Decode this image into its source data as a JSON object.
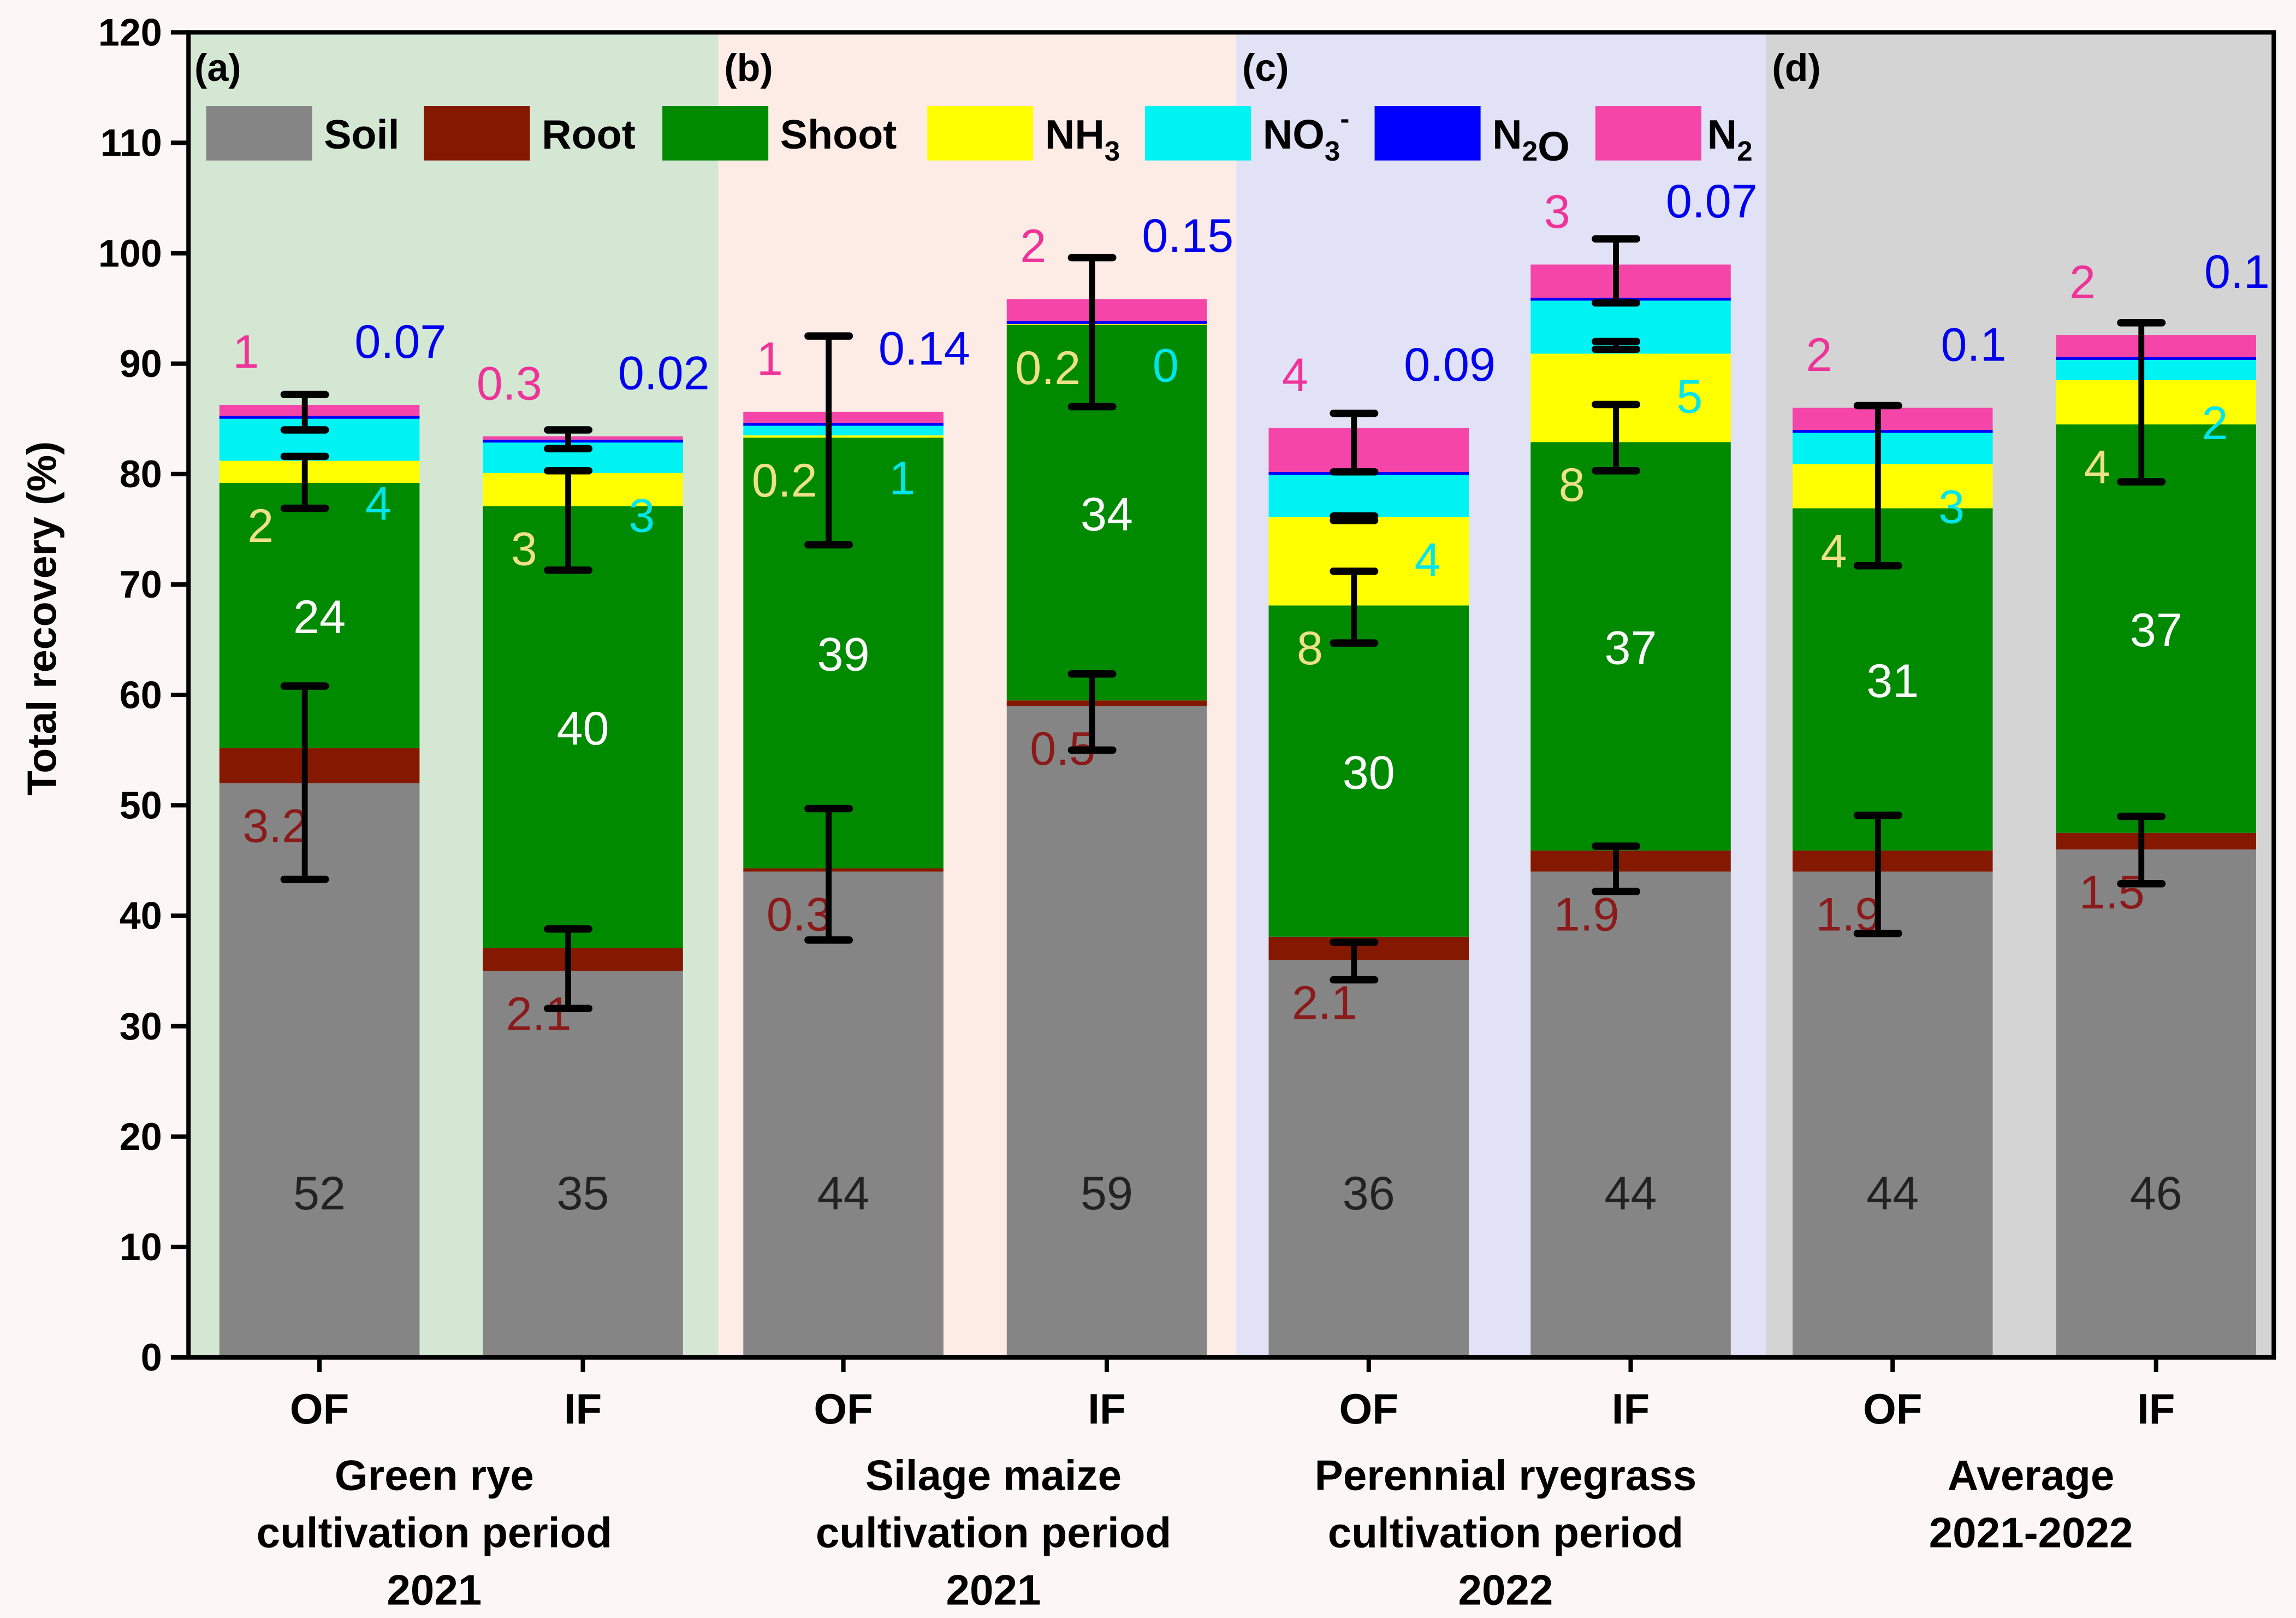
{
  "chart_data": {
    "type": "bar",
    "stacked": true,
    "ylabel": "Total recovery (%)",
    "ylim": [
      0,
      120
    ],
    "yticks": [
      0,
      10,
      20,
      30,
      40,
      50,
      60,
      70,
      80,
      90,
      100,
      110,
      120
    ],
    "grid": false,
    "legend_placement": "top",
    "legend": [
      {
        "key": "soil",
        "parts": [
          {
            "t": "Soil"
          }
        ]
      },
      {
        "key": "root",
        "parts": [
          {
            "t": "Root"
          }
        ]
      },
      {
        "key": "shoot",
        "parts": [
          {
            "t": "Shoot"
          }
        ]
      },
      {
        "key": "nh3",
        "parts": [
          {
            "t": "NH"
          },
          {
            "t": "3",
            "sub": true
          }
        ]
      },
      {
        "key": "no3",
        "parts": [
          {
            "t": "NO"
          },
          {
            "t": "3",
            "sub": true
          },
          {
            "t": "-",
            "sup": true
          }
        ]
      },
      {
        "key": "n2o",
        "parts": [
          {
            "t": "N"
          },
          {
            "t": "2",
            "sub": true
          },
          {
            "t": "O"
          }
        ]
      },
      {
        "key": "n2",
        "parts": [
          {
            "t": "N"
          },
          {
            "t": "2",
            "sub": true
          }
        ]
      }
    ],
    "colors": {
      "soil": "#858585",
      "root": "#841800",
      "shoot": "#008a00",
      "nh3": "#ffff00",
      "no3": "#00f3f3",
      "n2o": "#0000ff",
      "n2": "#f545a8"
    },
    "label_colors": {
      "soil": "#222222",
      "root": "#8b1a1a",
      "shoot": "#ffffff",
      "nh3": "#eee08a",
      "no3": "#00e5ee",
      "n2o": "#0000ee",
      "n2": "#ee3399"
    },
    "panels": [
      {
        "tag": "(a)",
        "title": [
          "Green rye",
          "cultivation period",
          "2021"
        ],
        "background": "#d3e7d3"
      },
      {
        "tag": "(b)",
        "title": [
          "Silage maize",
          "cultivation period",
          "2021"
        ],
        "background": "#fdece5"
      },
      {
        "tag": "(c)",
        "title": [
          "Perennial ryegrass",
          "cultivation period",
          "2022"
        ],
        "background": "#e2e2f7"
      },
      {
        "tag": "(d)",
        "title": [
          "Average",
          "2021-2022"
        ],
        "background": "#d4d4d4"
      }
    ],
    "categories": [
      "OF",
      "IF",
      "OF",
      "IF",
      "OF",
      "IF",
      "OF",
      "IF"
    ],
    "series": [
      {
        "name": "Soil",
        "key": "soil",
        "values": [
          52,
          35,
          44,
          59,
          36,
          44,
          44,
          46
        ]
      },
      {
        "name": "Root",
        "key": "root",
        "values": [
          3.2,
          2.1,
          0.3,
          0.5,
          2.1,
          1.9,
          1.9,
          1.5
        ]
      },
      {
        "name": "Shoot",
        "key": "shoot",
        "values": [
          24,
          40,
          39,
          34,
          30,
          37,
          31,
          37
        ]
      },
      {
        "name": "NH3",
        "key": "nh3",
        "values": [
          2,
          3,
          0.2,
          0.2,
          8,
          8,
          4,
          4
        ]
      },
      {
        "name": "NO3-",
        "key": "no3",
        "values": [
          4,
          3,
          1,
          0,
          4,
          5,
          3,
          2
        ]
      },
      {
        "name": "N2O",
        "key": "n2o",
        "values": [
          0.07,
          0.02,
          0.14,
          0.15,
          0.09,
          0.07,
          0.1,
          0.1
        ]
      },
      {
        "name": "N2",
        "key": "n2",
        "values": [
          1,
          0.3,
          1,
          2,
          4,
          3,
          2,
          2
        ]
      }
    ],
    "error_bars": [
      [
        [
          43.3,
          60.8
        ],
        [
          76.9,
          81.6
        ],
        [
          84,
          87.2
        ]
      ],
      [
        [
          31.6,
          38.8
        ],
        [
          71.3,
          80.3
        ],
        [
          82.3,
          84
        ]
      ],
      [
        [
          37.8,
          49.7
        ],
        [
          73.6,
          92.5
        ]
      ],
      [
        [
          55,
          61.9
        ],
        [
          86.1,
          99.6
        ]
      ],
      [
        [
          34.2,
          37.6
        ],
        [
          64.7,
          71.2
        ],
        [
          75.8,
          76.2
        ],
        [
          80.2,
          85.5
        ]
      ],
      [
        [
          42.2,
          46.3
        ],
        [
          80.3,
          86.3
        ],
        [
          91.3,
          92
        ],
        [
          95.5,
          101.3
        ]
      ],
      [
        [
          38.4,
          49.1
        ],
        [
          71.7,
          86.2
        ]
      ],
      [
        [
          42.9,
          49
        ],
        [
          79.3,
          93.7
        ]
      ]
    ]
  }
}
